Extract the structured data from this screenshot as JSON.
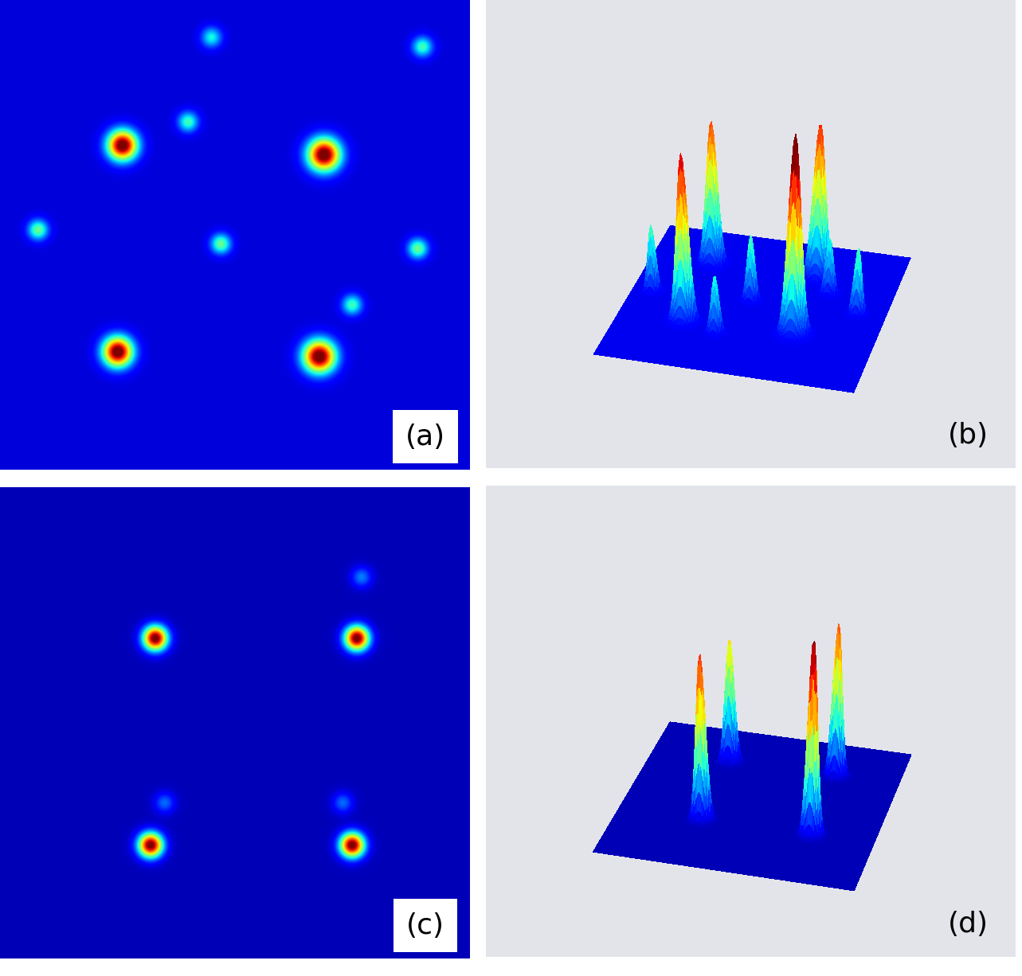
{
  "chart_data": [
    {
      "type": "heatmap",
      "label": "(a)",
      "background": 0.08,
      "color_range": [
        0,
        1
      ],
      "tick_labels": false,
      "peaks": [
        {
          "x": 0.26,
          "y": 0.31,
          "amplitude": 1.0,
          "width": 0.022
        },
        {
          "x": 0.69,
          "y": 0.33,
          "amplitude": 1.0,
          "width": 0.024
        },
        {
          "x": 0.25,
          "y": 0.75,
          "amplitude": 1.0,
          "width": 0.022
        },
        {
          "x": 0.68,
          "y": 0.76,
          "amplitude": 1.0,
          "width": 0.024
        },
        {
          "x": 0.08,
          "y": 0.49,
          "amplitude": 0.4,
          "width": 0.015
        },
        {
          "x": 0.47,
          "y": 0.52,
          "amplitude": 0.4,
          "width": 0.015
        },
        {
          "x": 0.89,
          "y": 0.53,
          "amplitude": 0.4,
          "width": 0.015
        },
        {
          "x": 0.75,
          "y": 0.65,
          "amplitude": 0.35,
          "width": 0.015
        },
        {
          "x": 0.4,
          "y": 0.26,
          "amplitude": 0.35,
          "width": 0.015
        },
        {
          "x": 0.9,
          "y": 0.1,
          "amplitude": 0.35,
          "width": 0.015
        },
        {
          "x": 0.45,
          "y": 0.08,
          "amplitude": 0.3,
          "width": 0.015
        }
      ]
    },
    {
      "type": "surface",
      "label": "(b)",
      "background": 0.1,
      "color_range": [
        0,
        1
      ],
      "tick_labels": false,
      "peaks": [
        {
          "x": 0.26,
          "y": 0.31,
          "amplitude": 0.85,
          "width": 0.022
        },
        {
          "x": 0.69,
          "y": 0.33,
          "amplitude": 1.0,
          "width": 0.024
        },
        {
          "x": 0.25,
          "y": 0.75,
          "amplitude": 0.75,
          "width": 0.022
        },
        {
          "x": 0.68,
          "y": 0.76,
          "amplitude": 0.8,
          "width": 0.024
        },
        {
          "x": 0.08,
          "y": 0.49,
          "amplitude": 0.35,
          "width": 0.015
        },
        {
          "x": 0.47,
          "y": 0.52,
          "amplitude": 0.35,
          "width": 0.015
        },
        {
          "x": 0.89,
          "y": 0.53,
          "amplitude": 0.35,
          "width": 0.015
        },
        {
          "x": 0.75,
          "y": 0.65,
          "amplitude": 0.3,
          "width": 0.015
        },
        {
          "x": 0.4,
          "y": 0.26,
          "amplitude": 0.3,
          "width": 0.015
        }
      ]
    },
    {
      "type": "heatmap",
      "label": "(c)",
      "background": 0.05,
      "color_range": [
        0,
        1
      ],
      "tick_labels": false,
      "peaks": [
        {
          "x": 0.33,
          "y": 0.32,
          "amplitude": 1.0,
          "width": 0.018
        },
        {
          "x": 0.76,
          "y": 0.32,
          "amplitude": 1.0,
          "width": 0.018
        },
        {
          "x": 0.32,
          "y": 0.76,
          "amplitude": 1.0,
          "width": 0.018
        },
        {
          "x": 0.75,
          "y": 0.76,
          "amplitude": 1.0,
          "width": 0.018
        },
        {
          "x": 0.77,
          "y": 0.19,
          "amplitude": 0.2,
          "width": 0.015
        },
        {
          "x": 0.35,
          "y": 0.67,
          "amplitude": 0.18,
          "width": 0.015
        },
        {
          "x": 0.73,
          "y": 0.67,
          "amplitude": 0.18,
          "width": 0.015
        }
      ]
    },
    {
      "type": "surface",
      "label": "(d)",
      "background": 0.05,
      "color_range": [
        0,
        1
      ],
      "tick_labels": false,
      "peaks": [
        {
          "x": 0.33,
          "y": 0.32,
          "amplitude": 0.85,
          "width": 0.018
        },
        {
          "x": 0.76,
          "y": 0.32,
          "amplitude": 1.0,
          "width": 0.018
        },
        {
          "x": 0.32,
          "y": 0.76,
          "amplitude": 0.65,
          "width": 0.018
        },
        {
          "x": 0.75,
          "y": 0.76,
          "amplitude": 0.8,
          "width": 0.018
        }
      ]
    }
  ]
}
